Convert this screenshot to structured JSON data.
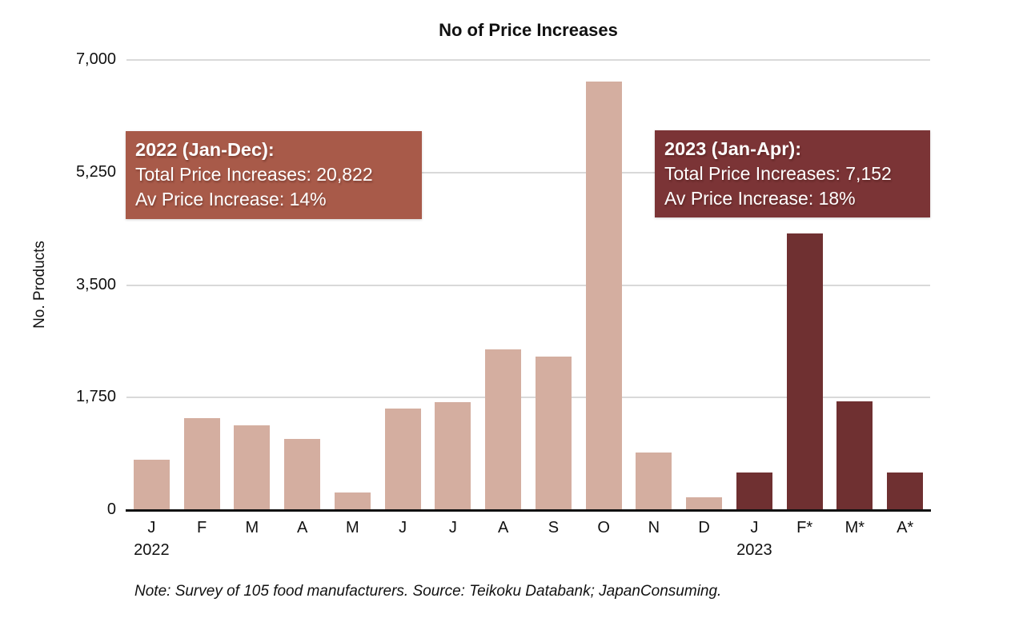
{
  "title": "No of Price Increases",
  "y_axis_title": "No. Products",
  "note": "Note: Survey of 105 food manufacturers. Source: Teikoku Databank; JapanConsuming.",
  "annotations": {
    "box2022": {
      "heading": "2022 (Jan-Dec):",
      "total_line": "Total Price Increases: 20,822",
      "avg_line": "Av Price Increase: 14%",
      "bg_color": "#A85A49"
    },
    "box2023": {
      "heading": "2023 (Jan-Apr):",
      "total_line": "Total Price Increases: 7,152",
      "avg_line": "Av Price Increase: 18%",
      "bg_color": "#7B3436"
    }
  },
  "chart_data": {
    "type": "bar",
    "title": "No of Price Increases",
    "xlabel": "",
    "ylabel": "No. Products",
    "ylim": [
      0,
      7000
    ],
    "yticks": [
      0,
      1750,
      3500,
      5250,
      7000
    ],
    "ytick_labels": [
      "0",
      "1,750",
      "3,500",
      "5,250",
      "7,000"
    ],
    "grid": "horizontal",
    "legend": "none",
    "categories": [
      "J",
      "F",
      "M",
      "A",
      "M",
      "J",
      "J",
      "A",
      "S",
      "O",
      "N",
      "D",
      "J",
      "F*",
      "M*",
      "A*"
    ],
    "year_labels": [
      {
        "text": "2022",
        "bar_index": 0
      },
      {
        "text": "2023",
        "bar_index": 12
      }
    ],
    "series": [
      {
        "name": "2022 (Jan-Dec)",
        "color": "#D4AEA0",
        "start_index": 0,
        "values": [
          790,
          1435,
          1320,
          1105,
          270,
          1580,
          1680,
          2495,
          2390,
          6660,
          900,
          197
        ]
      },
      {
        "name": "2023 (Jan-Apr)",
        "color": "#6F3031",
        "start_index": 12,
        "values": [
          580,
          4300,
          1690,
          582
        ]
      }
    ],
    "totals_shown": {
      "2022": "20,822",
      "2023": "7,152"
    },
    "avg_price_increase_shown": {
      "2022": "14%",
      "2023": "18%"
    }
  },
  "colors": {
    "bar_2022": "#D4AEA0",
    "bar_2023": "#6F3031",
    "annotation_2022_bg": "#A85A49",
    "annotation_2023_bg": "#7B3436",
    "gridline": "#D9D9D9",
    "axis_line": "#111111",
    "text": "#1A1A1A",
    "background": "#FFFFFF"
  }
}
